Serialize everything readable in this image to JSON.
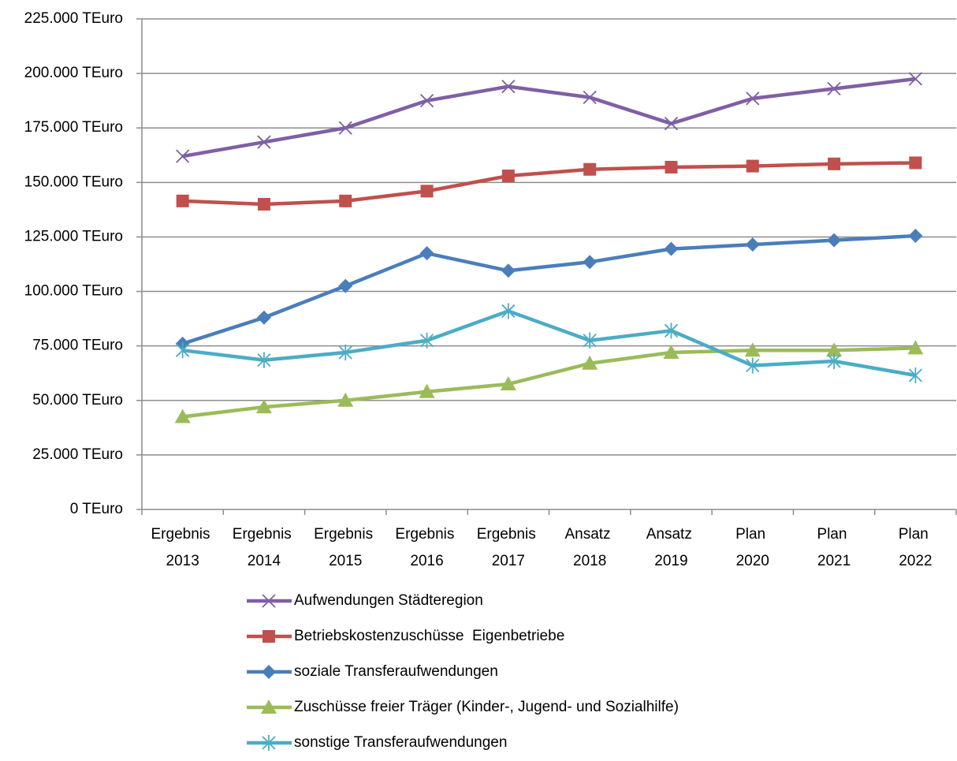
{
  "chart_data": {
    "type": "line",
    "categories": [
      "Ergebnis 2013",
      "Ergebnis 2014",
      "Ergebnis 2015",
      "Ergebnis 2016",
      "Ergebnis 2017",
      "Ansatz 2018",
      "Ansatz 2019",
      "Plan 2020",
      "Plan 2021",
      "Plan 2022"
    ],
    "series": [
      {
        "name": "Aufwendungen Städteregion",
        "color": "#7f5fa6",
        "marker": "x",
        "values": [
          162000,
          168500,
          175000,
          187500,
          194000,
          189000,
          177000,
          188500,
          193000,
          197500
        ]
      },
      {
        "name": "Betriebskostenzuschüsse  Eigenbetriebe",
        "color": "#c0504d",
        "marker": "square",
        "values": [
          141500,
          140000,
          141500,
          146000,
          153000,
          156000,
          157000,
          157500,
          158500,
          159000
        ]
      },
      {
        "name": "soziale Transferaufwendungen",
        "color": "#4a7ebb",
        "marker": "diamond",
        "values": [
          76000,
          88000,
          102500,
          117500,
          109500,
          113500,
          119500,
          121500,
          123500,
          125500
        ]
      },
      {
        "name": "Zuschüsse freier Träger (Kinder-, Jugend- und Sozialhilfe)",
        "color": "#9bbb59",
        "marker": "triangle",
        "values": [
          42500,
          47000,
          50000,
          54000,
          57500,
          67000,
          72000,
          73000,
          73000,
          74000
        ]
      },
      {
        "name": "sonstige Transferaufwendungen",
        "color": "#4bacc6",
        "marker": "star",
        "values": [
          73000,
          68500,
          72000,
          77500,
          91000,
          77500,
          82000,
          66000,
          68000,
          61500
        ]
      }
    ],
    "ylim": [
      0,
      225000
    ],
    "yticks": [
      {
        "value": 0,
        "label": "0 TEuro"
      },
      {
        "value": 25000,
        "label": "25.000 TEuro"
      },
      {
        "value": 50000,
        "label": "50.000 TEuro"
      },
      {
        "value": 75000,
        "label": "75.000 TEuro"
      },
      {
        "value": 100000,
        "label": "100.000 TEuro"
      },
      {
        "value": 125000,
        "label": "125.000 TEuro"
      },
      {
        "value": 150000,
        "label": "150.000 TEuro"
      },
      {
        "value": 175000,
        "label": "175.000 TEuro"
      },
      {
        "value": 200000,
        "label": "200.000 TEuro"
      },
      {
        "value": 225000,
        "label": "225.000 TEuro"
      }
    ],
    "grid": true,
    "legend": "bottom"
  }
}
